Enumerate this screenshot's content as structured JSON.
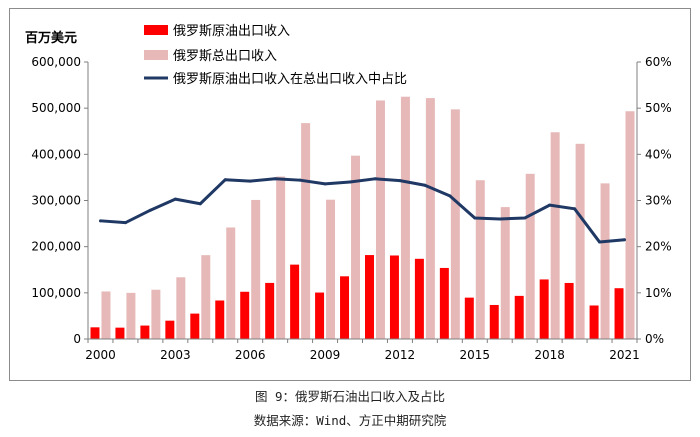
{
  "chart_data": {
    "type": "bar+line",
    "title": "",
    "ylabel": "百万美元",
    "ylim": [
      0,
      600000
    ],
    "y2lim": [
      0,
      0.6
    ],
    "y_ticks": [
      "0",
      "100,000",
      "200,000",
      "300,000",
      "400,000",
      "500,000",
      "600,000"
    ],
    "y2_ticks": [
      "0%",
      "10%",
      "20%",
      "30%",
      "40%",
      "50%",
      "60%"
    ],
    "x_ticks": [
      "2000",
      "2003",
      "2006",
      "2009",
      "2012",
      "2015",
      "2018",
      "2021"
    ],
    "years": [
      2000,
      2001,
      2002,
      2003,
      2004,
      2005,
      2006,
      2007,
      2008,
      2009,
      2010,
      2011,
      2012,
      2013,
      2014,
      2015,
      2016,
      2017,
      2018,
      2019,
      2020,
      2021
    ],
    "series": [
      {
        "name": "俄罗斯原油出口收入",
        "type": "bar",
        "axis": "left",
        "color": "#ff0000",
        "values": [
          25300,
          24600,
          29100,
          39700,
          55000,
          83400,
          102300,
          121500,
          161100,
          100600,
          135800,
          181800,
          180900,
          173700,
          153900,
          89600,
          73700,
          93400,
          129000,
          121400,
          72600,
          110000
        ]
      },
      {
        "name": "俄罗斯总出口收入",
        "type": "bar",
        "axis": "left",
        "color": "#e6b8b7",
        "values": [
          103000,
          99900,
          106700,
          133700,
          181600,
          241500,
          301200,
          351900,
          467600,
          301700,
          397100,
          516700,
          524800,
          521800,
          497400,
          343900,
          285700,
          357800,
          447800,
          422800,
          337100,
          493300
        ]
      },
      {
        "name": "俄罗斯原油出口收入在总出口收入中占比",
        "type": "line",
        "axis": "right",
        "color": "#1f3864",
        "values": [
          0.256,
          0.252,
          0.279,
          0.303,
          0.293,
          0.345,
          0.342,
          0.347,
          0.344,
          0.336,
          0.34,
          0.347,
          0.343,
          0.333,
          0.31,
          0.262,
          0.26,
          0.262,
          0.29,
          0.282,
          0.21,
          0.215
        ]
      }
    ]
  },
  "caption": {
    "title": "图 9：俄罗斯石油出口收入及占比",
    "source": "数据来源：Wind、方正中期研究院"
  }
}
